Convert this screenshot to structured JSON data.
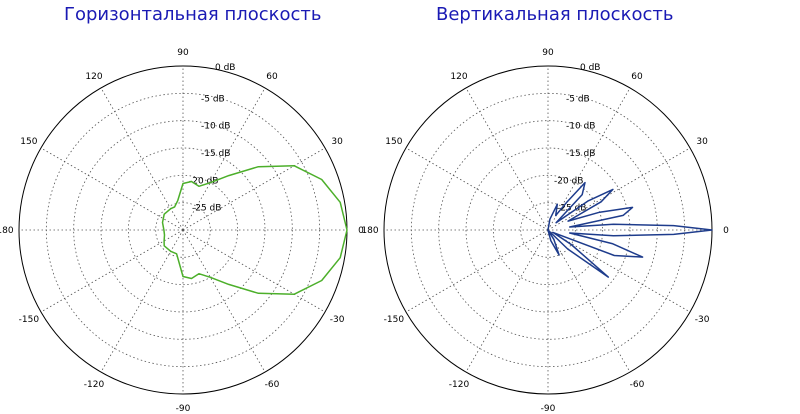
{
  "titles": {
    "left": "Горизонтальная плоскость",
    "right": "Вертикальная плоскость"
  },
  "chart_data": [
    {
      "type": "polar",
      "title": "Горизонтальная плоскость",
      "angle_labels": [
        "0",
        "30",
        "60",
        "90",
        "120",
        "150",
        "180",
        "-150",
        "-120",
        "-90",
        "-60",
        "-30"
      ],
      "angle_values": [
        0,
        30,
        60,
        90,
        120,
        150,
        180,
        -150,
        -120,
        -90,
        -60,
        -30
      ],
      "r_labels": [
        "0 dB",
        "-5 dB",
        "-10 dB",
        "-15 dB",
        "-20 dB",
        "-25 dB"
      ],
      "r_values": [
        0,
        -5,
        -10,
        -15,
        -20,
        -25
      ],
      "rlim": [
        -30,
        0
      ],
      "grid": true,
      "color": "#4caf2a",
      "series": [
        {
          "theta": [
            -180,
            -165,
            -150,
            -140,
            -120,
            -105,
            -90,
            -80,
            -70,
            -60,
            -50,
            -40,
            -30,
            -20,
            -10,
            0,
            10,
            20,
            30,
            40,
            50,
            60,
            70,
            80,
            90,
            100,
            110,
            120,
            140,
            160,
            180
          ],
          "r": [
            -26.5,
            -26.5,
            -26,
            -25.5,
            -25.5,
            -25.5,
            -21.5,
            -21,
            -21.5,
            -20,
            -17,
            -12,
            -6.5,
            -3,
            -0.8,
            0,
            -0.8,
            -3,
            -6.5,
            -12,
            -17,
            -20,
            -21.5,
            -21,
            -21.5,
            -24.5,
            -25.5,
            -25.5,
            -25.5,
            -26,
            -26.5
          ]
        }
      ]
    },
    {
      "type": "polar",
      "title": "Вертикальная плоскость",
      "angle_labels": [
        "0",
        "30",
        "60",
        "90",
        "120",
        "150",
        "180",
        "-150",
        "-120",
        "-90",
        "-60",
        "-30"
      ],
      "angle_values": [
        0,
        30,
        60,
        90,
        120,
        150,
        180,
        -150,
        -120,
        -90,
        -60,
        -30
      ],
      "r_labels": [
        "0 dB",
        "-5 dB",
        "-10 dB",
        "-15 dB",
        "-20 dB",
        "-25 dB"
      ],
      "r_values": [
        0,
        -5,
        -10,
        -15,
        -20,
        -25
      ],
      "rlim": [
        -30,
        0
      ],
      "grid": true,
      "color": "#1e3c8c",
      "series": [
        {
          "theta": [
            -180,
            -150,
            -120,
            -90,
            -75,
            -66,
            -58,
            -50,
            -44,
            -38,
            -32,
            -26,
            -21,
            -16,
            -12,
            -8,
            -5,
            -2,
            0,
            2,
            5,
            8,
            11,
            15,
            19,
            24,
            28,
            32,
            36,
            42,
            46,
            52,
            56,
            62,
            70,
            80,
            90,
            120,
            150,
            180
          ],
          "r": [
            -30,
            -30,
            -30,
            -30,
            -28,
            -25,
            -28,
            -30,
            -25,
            -16,
            -25,
            -29,
            -17,
            -12,
            -18,
            -26,
            -18,
            -7,
            0,
            -7,
            -18,
            -26,
            -16,
            -14,
            -20,
            -26,
            -19,
            -16,
            -21,
            -28,
            -21,
            -19,
            -24,
            -27,
            -25,
            -28,
            -30,
            -30,
            -30,
            -30
          ]
        }
      ]
    }
  ]
}
